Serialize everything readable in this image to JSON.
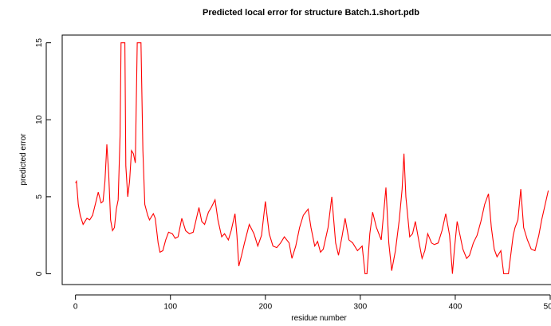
{
  "chart_data": {
    "type": "line",
    "title": "Predicted local error for structure Batch.1.short.pdb",
    "xlabel": "residue number",
    "ylabel": "predicted error",
    "x": [
      0,
      1,
      3,
      5,
      8,
      12,
      15,
      18,
      22,
      24,
      27,
      29,
      31,
      33,
      35,
      37,
      39,
      41,
      43,
      45,
      47,
      48,
      52,
      53,
      55,
      57,
      59,
      61,
      63,
      65,
      69,
      71,
      73,
      76,
      78,
      82,
      84,
      87,
      89,
      92,
      95,
      98,
      102,
      105,
      108,
      112,
      116,
      120,
      124,
      127,
      130,
      133,
      136,
      140,
      143,
      147,
      150,
      154,
      157,
      161,
      164,
      168,
      170,
      172,
      175,
      178,
      183,
      188,
      192,
      196,
      200,
      204,
      208,
      212,
      216,
      220,
      225,
      228,
      232,
      236,
      240,
      245,
      248,
      252,
      255,
      258,
      261,
      266,
      270,
      274,
      277,
      281,
      284,
      288,
      292,
      297,
      302,
      305,
      307,
      310,
      313,
      317,
      322,
      327,
      330,
      333,
      337,
      341,
      344,
      346,
      348,
      352,
      355,
      358,
      362,
      365,
      368,
      371,
      375,
      378,
      382,
      386,
      390,
      394,
      397,
      399,
      402,
      405,
      408,
      412,
      415,
      419,
      423,
      427,
      431,
      435,
      438,
      441,
      444,
      448,
      451,
      456,
      458,
      461,
      463,
      466,
      469,
      472,
      476,
      480,
      484,
      488,
      491,
      498
    ],
    "series": [
      {
        "name": "predicted error",
        "color": "#ff0000",
        "values": [
          5.9,
          6.0,
          4.5,
          3.8,
          3.2,
          3.6,
          3.5,
          3.8,
          4.8,
          5.3,
          4.6,
          4.7,
          6.0,
          8.4,
          6.5,
          3.5,
          2.8,
          3.0,
          4.2,
          4.8,
          9,
          15,
          15,
          7,
          5.0,
          6.0,
          8.0,
          7.8,
          7.2,
          15,
          15,
          8,
          4.5,
          3.8,
          3.5,
          3.9,
          3.6,
          2.0,
          1.4,
          1.5,
          2.2,
          2.7,
          2.6,
          2.3,
          2.4,
          3.6,
          2.8,
          2.6,
          2.7,
          3.5,
          4.3,
          3.4,
          3.2,
          4.0,
          4.3,
          4.8,
          3.5,
          2.4,
          2.6,
          2.2,
          2.8,
          3.9,
          2.5,
          0.5,
          1.2,
          2.0,
          3.2,
          2.6,
          1.8,
          2.5,
          4.7,
          2.6,
          1.8,
          1.7,
          2.0,
          2.4,
          2.0,
          1.0,
          1.8,
          3.0,
          3.8,
          4.2,
          3.0,
          1.8,
          2.1,
          1.4,
          1.6,
          3.0,
          5.0,
          2.0,
          1.2,
          2.5,
          3.6,
          2.2,
          2.0,
          1.5,
          1.8,
          0.0,
          0.0,
          2.6,
          4.0,
          3.0,
          2.2,
          5.6,
          2.0,
          0.2,
          1.5,
          3.5,
          5.5,
          7.8,
          5.0,
          2.4,
          2.6,
          3.4,
          2.0,
          1.0,
          1.5,
          2.6,
          2.0,
          1.9,
          2.0,
          2.8,
          3.9,
          2.5,
          0.0,
          1.5,
          3.4,
          2.5,
          1.6,
          1.0,
          1.2,
          2.0,
          2.5,
          3.4,
          4.5,
          5.2,
          3.0,
          1.6,
          1.1,
          1.5,
          0.0,
          0.0,
          1.0,
          2.5,
          3.0,
          3.5,
          5.5,
          3.0,
          2.2,
          1.6,
          1.5,
          2.5,
          3.5,
          5.4
        ]
      }
    ],
    "xlim": [
      -14,
      500
    ],
    "ylim": [
      -0.7,
      15.5
    ],
    "xticks": [
      0,
      100,
      200,
      300,
      400,
      500
    ],
    "yticks": [
      0,
      5,
      10,
      15
    ]
  }
}
